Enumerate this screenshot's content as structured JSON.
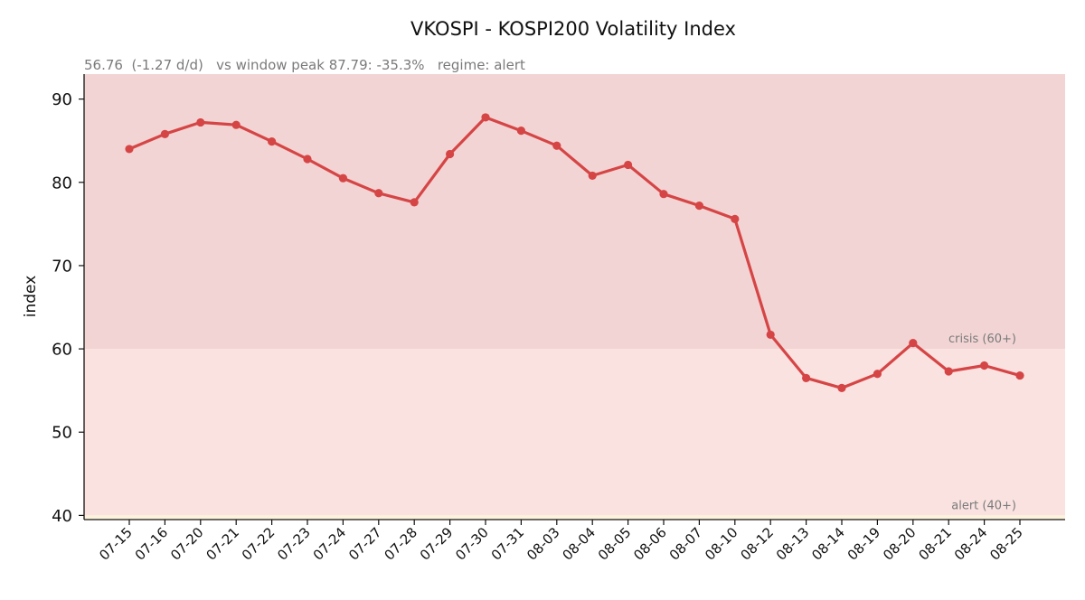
{
  "chart_data": {
    "type": "line",
    "title": "VKOSPI - KOSPI200 Volatility Index",
    "subtitle": "56.76  (-1.27 d/d)   vs window peak 87.79: -35.3%   regime: alert",
    "xlabel": "",
    "ylabel": "index",
    "ylim": [
      39.5,
      93.0
    ],
    "yticks": [
      40,
      50,
      60,
      70,
      80,
      90
    ],
    "grid": false,
    "categories": [
      "07-15",
      "07-16",
      "07-20",
      "07-21",
      "07-22",
      "07-23",
      "07-24",
      "07-27",
      "07-28",
      "07-29",
      "07-30",
      "07-31",
      "08-03",
      "08-04",
      "08-05",
      "08-06",
      "08-07",
      "08-10",
      "08-12",
      "08-13",
      "08-14",
      "08-19",
      "08-20",
      "08-21",
      "08-24",
      "08-25"
    ],
    "series": [
      {
        "color": "#d64545",
        "values": [
          84.0,
          85.8,
          87.2,
          86.9,
          84.9,
          82.8,
          80.5,
          78.7,
          77.6,
          83.4,
          87.8,
          86.2,
          84.4,
          80.8,
          82.1,
          78.6,
          77.2,
          75.6,
          61.7,
          56.5,
          55.3,
          57.0,
          60.7,
          57.3,
          58.0,
          56.8
        ]
      }
    ],
    "bands": [
      {
        "label": "crisis (60+)",
        "from": 60,
        "to": 93.0,
        "color": "#f2d4d4"
      },
      {
        "label": "alert (40+)",
        "from": 40,
        "to": 60,
        "color": "#f9e2e0"
      },
      {
        "label": "",
        "from": 39.5,
        "to": 40,
        "color": "#fdf3dc"
      }
    ]
  }
}
